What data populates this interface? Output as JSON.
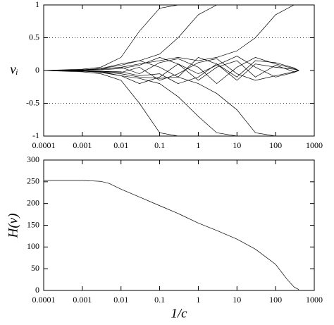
{
  "chart_data": [
    {
      "type": "line",
      "ylabel": "vᵢ",
      "color": "#000000",
      "log_x": true,
      "x": [
        0.0001,
        0.0003,
        0.001,
        0.003,
        0.01,
        0.03,
        0.1,
        0.3,
        1,
        3,
        10,
        30,
        100,
        300,
        400
      ],
      "xlim": [
        0.0001,
        1000
      ],
      "xticks": [
        0.0001,
        0.001,
        0.01,
        0.1,
        1,
        10,
        100,
        1000
      ],
      "ylim": [
        -1,
        1
      ],
      "yticks": [
        -1,
        -0.5,
        0,
        0.5,
        1
      ],
      "hlines": [
        -0.5,
        0.5
      ],
      "series": [
        {
          "values": [
            0,
            0.01,
            0.02,
            0.05,
            0.2,
            0.6,
            0.95,
            1,
            1,
            1,
            1,
            1,
            1,
            1,
            1
          ]
        },
        {
          "values": [
            0,
            -0.01,
            -0.02,
            -0.05,
            -0.15,
            -0.5,
            -0.95,
            -1,
            -1,
            -1,
            -1,
            -1,
            -1,
            -1,
            -1
          ]
        },
        {
          "values": [
            0,
            0,
            0.01,
            0.03,
            0.08,
            0.15,
            0.25,
            0.5,
            0.85,
            1,
            1,
            1,
            1,
            1,
            1
          ]
        },
        {
          "values": [
            0,
            0,
            -0.01,
            -0.03,
            -0.08,
            -0.12,
            -0.2,
            -0.4,
            -0.7,
            -0.95,
            -1,
            -1,
            -1,
            -1,
            -1
          ]
        },
        {
          "values": [
            0,
            0,
            0.01,
            0.02,
            0.05,
            0.1,
            0.15,
            0.2,
            0.15,
            0.2,
            0.3,
            0.5,
            0.85,
            1,
            1
          ]
        },
        {
          "values": [
            0,
            0,
            -0.01,
            -0.02,
            -0.05,
            -0.1,
            -0.12,
            -0.1,
            -0.2,
            -0.35,
            -0.6,
            -0.95,
            -1,
            -1,
            -1
          ]
        },
        {
          "values": [
            0,
            0.005,
            0.01,
            0.03,
            0.1,
            0.15,
            0.05,
            -0.1,
            0.2,
            0.1,
            -0.15,
            0.1,
            0.05,
            0.02,
            0
          ]
        },
        {
          "values": [
            0,
            -0.005,
            -0.01,
            -0.02,
            -0.08,
            -0.2,
            -0.1,
            0.1,
            -0.15,
            0.05,
            0.15,
            -0.1,
            0.08,
            -0.02,
            0
          ]
        },
        {
          "values": [
            0,
            0.003,
            0.008,
            0.02,
            0.05,
            -0.05,
            0.12,
            0.18,
            0.05,
            -0.2,
            0.05,
            0.2,
            0.1,
            0.03,
            0
          ]
        },
        {
          "values": [
            0,
            -0.003,
            -0.006,
            -0.015,
            -0.03,
            0.05,
            -0.15,
            -0.05,
            0.12,
            0.18,
            -0.05,
            -0.15,
            -0.08,
            -0.02,
            0
          ]
        },
        {
          "values": [
            0,
            0.002,
            0.004,
            0.01,
            0.03,
            0.08,
            0.2,
            0.1,
            -0.05,
            0.08,
            0.22,
            0.05,
            -0.1,
            -0.03,
            0
          ]
        },
        {
          "values": [
            0,
            -0.002,
            -0.004,
            -0.01,
            -0.02,
            -0.08,
            -0.05,
            -0.2,
            -0.1,
            0.1,
            -0.1,
            0.15,
            0.12,
            0.04,
            0
          ]
        }
      ]
    },
    {
      "type": "line",
      "ylabel": "H(v)",
      "xlabel": "1/c",
      "color": "#000000",
      "log_x": true,
      "x": [
        0.0001,
        0.001,
        0.003,
        0.005,
        0.01,
        0.03,
        0.1,
        0.3,
        1,
        3,
        10,
        30,
        100,
        200,
        300,
        400
      ],
      "values": [
        253,
        253,
        251,
        246,
        233,
        215,
        195,
        177,
        155,
        138,
        118,
        95,
        60,
        25,
        8,
        2
      ],
      "xlim": [
        0.0001,
        1000
      ],
      "xticks": [
        0.0001,
        0.001,
        0.01,
        0.1,
        1,
        10,
        100,
        1000
      ],
      "ylim": [
        0,
        300
      ],
      "yticks": [
        0,
        50,
        100,
        150,
        200,
        250,
        300
      ]
    }
  ]
}
